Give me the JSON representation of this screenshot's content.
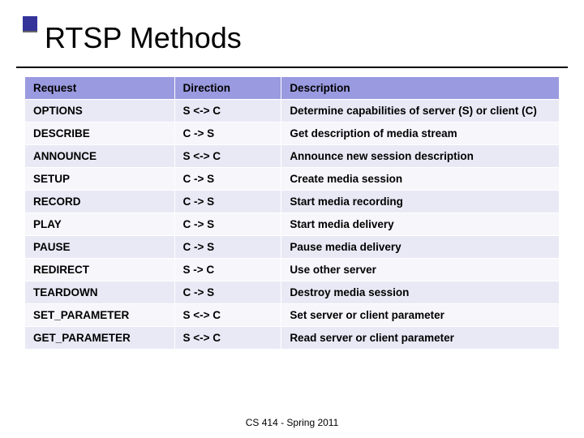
{
  "title": "RTSP Methods",
  "table": {
    "header_bg": "#9a9ae0",
    "row_bg_even": "#e9e9f6",
    "row_bg_odd": "#f6f6fb",
    "border_color": "#ffffff",
    "font_size_pt": 13.5,
    "columns": [
      {
        "label": "Request",
        "width_pct": 28
      },
      {
        "label": "Direction",
        "width_pct": 20
      },
      {
        "label": "Description",
        "width_pct": 52
      }
    ],
    "rows": [
      {
        "request": "OPTIONS",
        "direction": "S <-> C",
        "description": "Determine capabilities of server (S) or client (C)"
      },
      {
        "request": "DESCRIBE",
        "direction": "C ->  S",
        "description": "Get description of media stream"
      },
      {
        "request": "ANNOUNCE",
        "direction": "S <-> C",
        "description": "Announce new session description"
      },
      {
        "request": "SETUP",
        "direction": "C -> S",
        "description": "Create  media session"
      },
      {
        "request": "RECORD",
        "direction": "C -> S",
        "description": "Start media recording"
      },
      {
        "request": "PLAY",
        "direction": "C -> S",
        "description": "Start media delivery"
      },
      {
        "request": "PAUSE",
        "direction": "C -> S",
        "description": "Pause media delivery"
      },
      {
        "request": "REDIRECT",
        "direction": "S -> C",
        "description": "Use other server"
      },
      {
        "request": "TEARDOWN",
        "direction": "C -> S",
        "description": "Destroy media session"
      },
      {
        "request": "SET_PARAMETER",
        "direction": "S <-> C",
        "description": "Set server or client parameter"
      },
      {
        "request": "GET_PARAMETER",
        "direction": "S <-> C",
        "description": "Read server or client parameter"
      }
    ]
  },
  "footer": "CS 414 - Spring 2011",
  "accent_color": "#33339a"
}
